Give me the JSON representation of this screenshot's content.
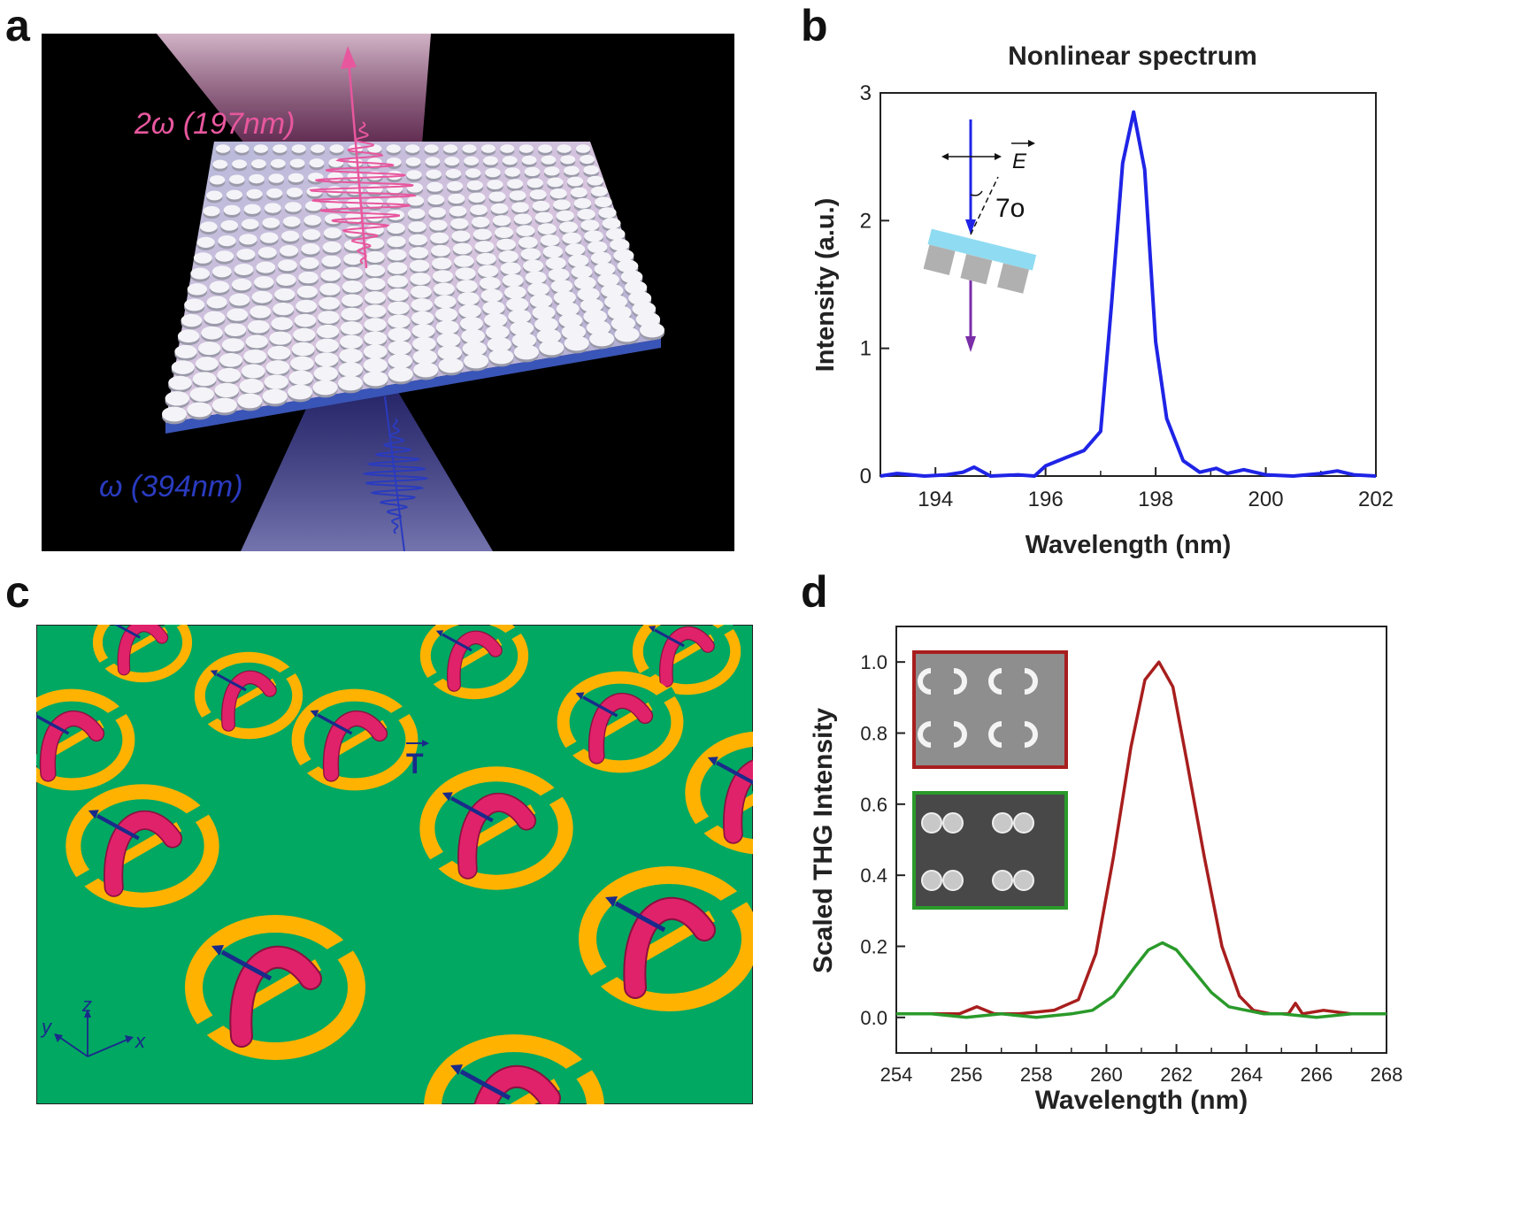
{
  "panel_labels": {
    "a": "a",
    "b": "b",
    "c": "c",
    "d": "d"
  },
  "panel_a": {
    "label_2w": "2ω (197nm)",
    "label_w": "ω (394nm)",
    "colors": {
      "pink": "#e8579e",
      "blue": "#2a3bbf",
      "background": "#000000"
    }
  },
  "panel_c": {
    "vector_label": "T",
    "axis_x": "x",
    "axis_y": "y",
    "axis_z": "z",
    "colors": {
      "background": "#00a862",
      "ring": "#ffb300",
      "torus": "#e0226a",
      "arrow": "#1a2a8a"
    }
  },
  "chart_data": [
    {
      "id": "b",
      "type": "line",
      "title": "Nonlinear spectrum",
      "xlabel": "Wavelength (nm)",
      "ylabel": "Intensity (a.u.)",
      "xlim": [
        193,
        202
      ],
      "ylim": [
        0,
        3
      ],
      "xticks": [
        194,
        196,
        198,
        200,
        202
      ],
      "yticks": [
        0,
        1,
        2,
        3
      ],
      "inset": {
        "field_label": "E",
        "angle_label": "7o"
      },
      "series": [
        {
          "name": "spectrum",
          "color": "#1f24e6",
          "x": [
            193.0,
            193.3,
            193.8,
            194.2,
            194.5,
            194.7,
            195.0,
            195.5,
            195.8,
            196.0,
            196.4,
            196.7,
            197.0,
            197.2,
            197.4,
            197.6,
            197.8,
            198.0,
            198.2,
            198.5,
            198.8,
            199.1,
            199.3,
            199.6,
            200.0,
            200.5,
            201.0,
            201.3,
            201.6,
            202.0
          ],
          "y": [
            0.0,
            0.02,
            0.0,
            0.01,
            0.03,
            0.07,
            0.0,
            0.01,
            0.0,
            0.08,
            0.15,
            0.2,
            0.35,
            1.35,
            2.45,
            2.85,
            2.4,
            1.05,
            0.45,
            0.12,
            0.03,
            0.06,
            0.02,
            0.05,
            0.01,
            0.0,
            0.02,
            0.04,
            0.01,
            0.0
          ]
        }
      ]
    },
    {
      "id": "d",
      "type": "line",
      "title": "",
      "xlabel": "Wavelength (nm)",
      "ylabel": "Scaled THG Intensity",
      "xlim": [
        254,
        268
      ],
      "ylim": [
        -0.1,
        1.1
      ],
      "xticks": [
        254,
        256,
        258,
        260,
        262,
        264,
        266,
        268
      ],
      "yticks": [
        0.0,
        0.2,
        0.4,
        0.6,
        0.8,
        1.0
      ],
      "series": [
        {
          "name": "split-ring",
          "color": "#a81e1e",
          "x": [
            254,
            255,
            255.8,
            256.3,
            256.8,
            257.5,
            258.5,
            259.2,
            259.7,
            260.2,
            260.7,
            261.1,
            261.5,
            261.9,
            262.3,
            262.8,
            263.3,
            263.8,
            264.2,
            264.7,
            265.2,
            265.4,
            265.6,
            266.2,
            267,
            268
          ],
          "y": [
            0.01,
            0.01,
            0.01,
            0.03,
            0.01,
            0.01,
            0.02,
            0.05,
            0.18,
            0.45,
            0.76,
            0.95,
            1.0,
            0.93,
            0.72,
            0.45,
            0.2,
            0.06,
            0.02,
            0.01,
            0.01,
            0.04,
            0.01,
            0.02,
            0.01,
            0.01
          ]
        },
        {
          "name": "disk",
          "color": "#2a9a2a",
          "x": [
            254,
            255,
            256,
            257,
            258,
            259,
            259.6,
            260.2,
            260.8,
            261.2,
            261.6,
            262.0,
            262.5,
            263.0,
            263.5,
            264.0,
            264.5,
            265,
            266,
            267,
            268
          ],
          "y": [
            0.01,
            0.01,
            0.0,
            0.01,
            0.0,
            0.01,
            0.02,
            0.06,
            0.14,
            0.19,
            0.21,
            0.19,
            0.13,
            0.07,
            0.03,
            0.02,
            0.01,
            0.01,
            0.0,
            0.01,
            0.01
          ]
        }
      ]
    }
  ]
}
